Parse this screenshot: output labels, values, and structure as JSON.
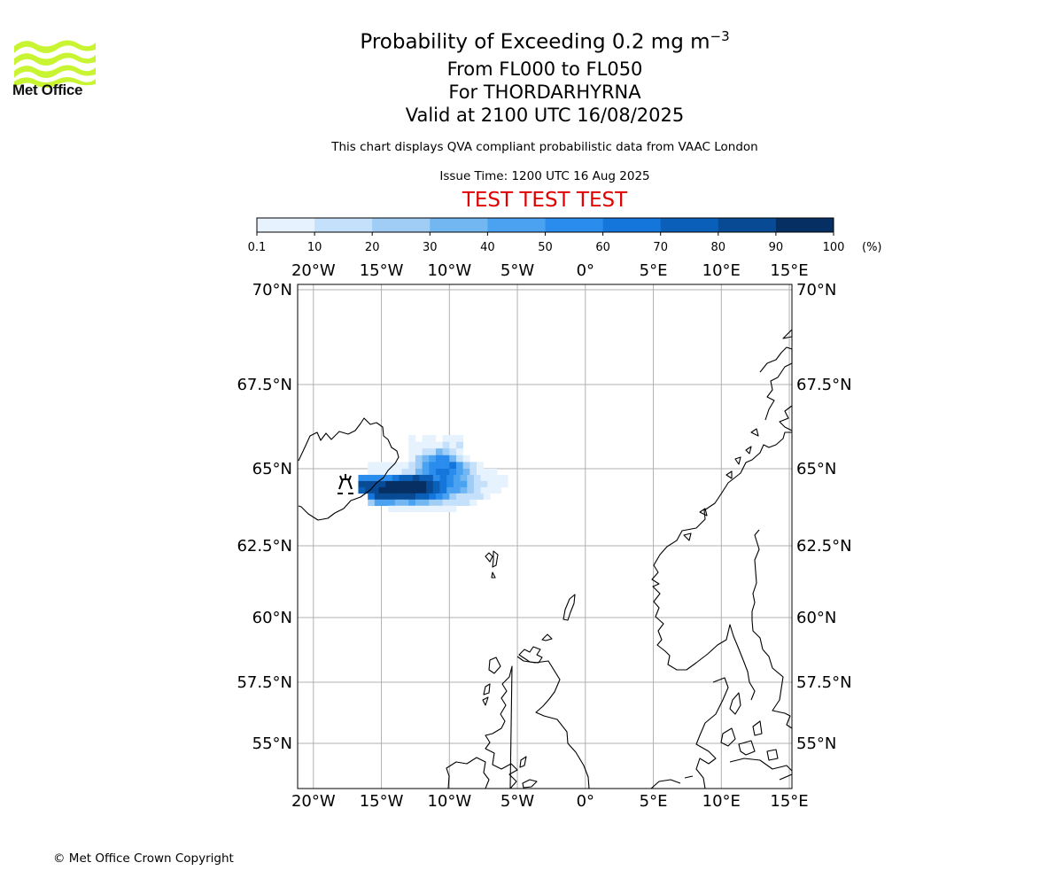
{
  "logo": {
    "text": "Met Office",
    "color": "#c8f432"
  },
  "title": {
    "main": "Probability of Exceeding 0.2 mg m",
    "main_sup": "−3",
    "flight_levels": "From FL000 to FL050",
    "volcano": "For THORDARHYRNA",
    "valid": "Valid at 2100 UTC 16/08/2025"
  },
  "subtitle": "This chart displays QVA compliant probabilistic data from VAAC London",
  "issue_time": "Issue Time: 1200 UTC 16 Aug 2025",
  "test_banner": "TEST TEST TEST",
  "colorbar": {
    "ticks": [
      "0.1",
      "10",
      "20",
      "30",
      "40",
      "50",
      "60",
      "70",
      "80",
      "90",
      "100"
    ],
    "unit": "(%)",
    "colors": [
      "#e6f2fd",
      "#c5e0fa",
      "#9fcdf5",
      "#72b6f2",
      "#4aa2f0",
      "#2a8ded",
      "#1476db",
      "#0a5fb8",
      "#084b94",
      "#062f63"
    ]
  },
  "map": {
    "lon_labels": [
      "20°W",
      "15°W",
      "10°W",
      "5°W",
      "0°",
      "5°E",
      "10°E",
      "15°E"
    ],
    "lat_labels": [
      "70°N",
      "67.5°N",
      "65°N",
      "62.5°N",
      "60°N",
      "57.5°N",
      "55°N"
    ],
    "volcano_marker": "volcano-symbol"
  },
  "chart_data": {
    "type": "heatmap",
    "title": "Probability of Exceeding 0.2 mg m−3",
    "units": "%",
    "bins": [
      0.1,
      10,
      20,
      30,
      40,
      50,
      60,
      70,
      80,
      90,
      100
    ],
    "lon_range": [
      -21,
      15.2
    ],
    "lat_range": [
      53.5,
      70.2
    ],
    "volcano": {
      "name": "THORDARHYRNA",
      "lon": -17.6,
      "lat": 64.3
    },
    "plume_rows": [
      {
        "lat": 65.9,
        "lon_start": -13.0,
        "values": [
          5,
          0,
          5,
          5,
          0,
          5,
          5,
          5
        ]
      },
      {
        "lat": 65.7,
        "lon_start": -13.0,
        "values": [
          5,
          5,
          5,
          5,
          5,
          15,
          5,
          15
        ]
      },
      {
        "lat": 65.5,
        "lon_start": -13.0,
        "values": [
          5,
          5,
          15,
          15,
          35,
          25,
          15,
          5
        ]
      },
      {
        "lat": 65.3,
        "lon_start": -13.0,
        "values": [
          5,
          25,
          35,
          45,
          55,
          55,
          35,
          15,
          5
        ]
      },
      {
        "lat": 65.1,
        "lon_start": -16.0,
        "values": [
          5,
          5,
          5,
          5,
          5,
          5,
          15,
          25,
          45,
          55,
          55,
          55,
          65,
          45,
          25,
          15,
          5
        ]
      },
      {
        "lat": 64.9,
        "lon_start": -16.0,
        "values": [
          5,
          5,
          5,
          5,
          5,
          15,
          15,
          35,
          45,
          55,
          65,
          65,
          55,
          45,
          35,
          15,
          5,
          5,
          5
        ]
      },
      {
        "lat": 64.7,
        "lon_start": -16.7,
        "values": [
          55,
          55,
          55,
          55,
          55,
          65,
          75,
          75,
          85,
          75,
          75,
          55,
          65,
          55,
          45,
          35,
          25,
          15,
          5,
          5,
          5,
          5
        ]
      },
      {
        "lat": 64.5,
        "lon_start": -16.7,
        "values": [
          85,
          85,
          85,
          85,
          95,
          95,
          95,
          95,
          95,
          95,
          85,
          75,
          65,
          55,
          45,
          45,
          25,
          15,
          15,
          5,
          5,
          5
        ]
      },
      {
        "lat": 64.3,
        "lon_start": -16.7,
        "values": [
          75,
          85,
          85,
          95,
          95,
          95,
          95,
          95,
          95,
          95,
          85,
          75,
          65,
          45,
          45,
          35,
          25,
          15,
          5,
          5,
          5
        ]
      },
      {
        "lat": 64.1,
        "lon_start": -16.0,
        "values": [
          65,
          85,
          85,
          85,
          85,
          85,
          85,
          75,
          75,
          65,
          55,
          45,
          25,
          15,
          15,
          15,
          15,
          5
        ]
      },
      {
        "lat": 63.9,
        "lon_start": -16.0,
        "values": [
          25,
          45,
          45,
          45,
          35,
          35,
          45,
          35,
          35,
          25,
          25,
          15,
          15,
          15,
          15,
          5
        ]
      },
      {
        "lat": 63.7,
        "lon_start": -14.5,
        "values": [
          5,
          5,
          5,
          5,
          5,
          5,
          5,
          5,
          5,
          5
        ]
      }
    ]
  },
  "copyright": "© Met Office Crown Copyright"
}
